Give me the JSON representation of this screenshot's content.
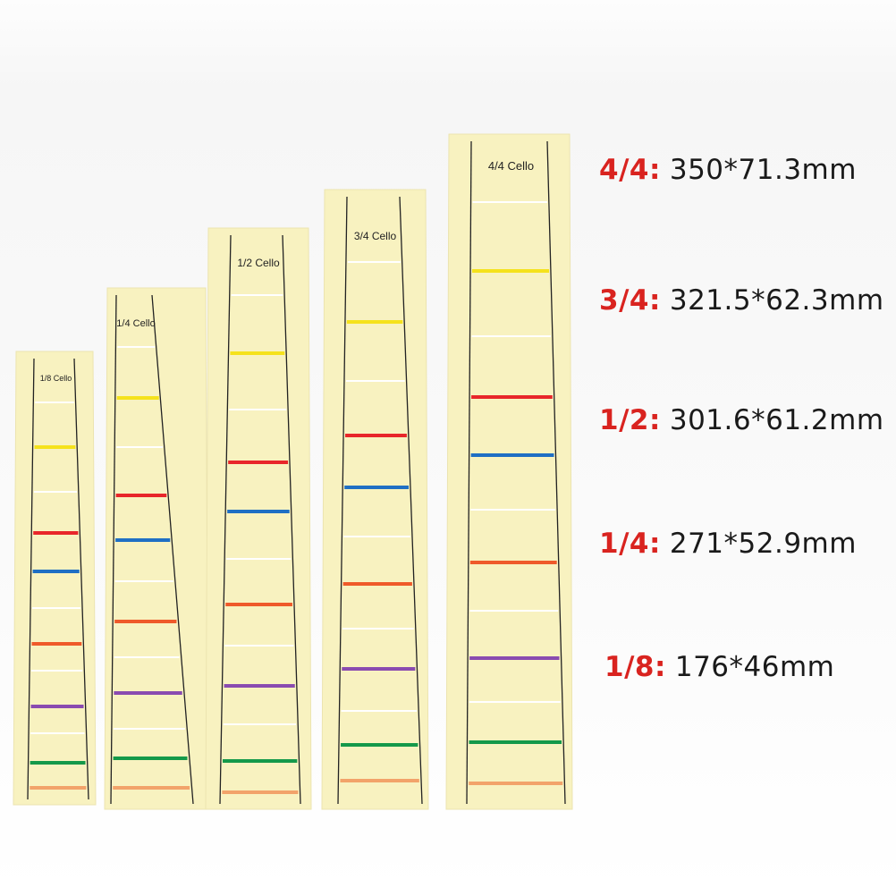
{
  "colors": {
    "sticker": "#f8f2c0",
    "size_label": "#d9231f",
    "band_sequence": [
      "#ffffff",
      "#f5e21c",
      "#ffffff",
      "#e8262a",
      "#1f6fc4",
      "#ffffff",
      "#ef5a2a",
      "#ffffff",
      "#8a4bb0",
      "#ffffff",
      "#14994a",
      "#f2a36a"
    ]
  },
  "stickers": [
    {
      "label": "1/8 Cello"
    },
    {
      "label": "1/4 Cello"
    },
    {
      "label": "1/2 Cello"
    },
    {
      "label": "3/4 Cello"
    },
    {
      "label": "4/4 Cello"
    }
  ],
  "specs": [
    {
      "size": "4/4:",
      "dims": "350*71.3mm"
    },
    {
      "size": "3/4:",
      "dims": "321.5*62.3mm"
    },
    {
      "size": "1/2:",
      "dims": "301.6*61.2mm"
    },
    {
      "size": "1/4:",
      "dims": "271*52.9mm"
    },
    {
      "size": "1/8:",
      "dims": "176*46mm"
    }
  ]
}
